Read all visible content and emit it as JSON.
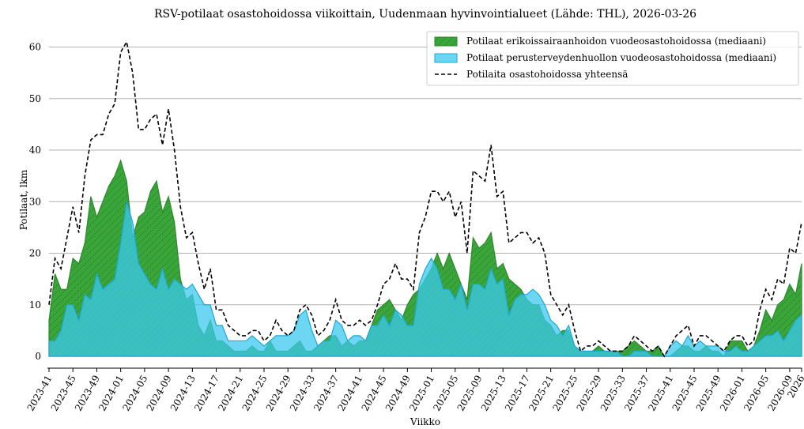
{
  "chart_data": {
    "type": "area",
    "title": "RSV-potilaat osastohoidossa viikoittain, Uudenmaan hyvinvointialueet (Lähde: THL), 2026-03-26",
    "xlabel": "Viikko",
    "ylabel": "Potilaat, lkm",
    "categories": [
      "2023-41",
      null,
      null,
      null,
      "2023-45",
      null,
      null,
      null,
      "2023-49",
      null,
      null,
      null,
      "2024-01",
      null,
      null,
      null,
      "2024-05",
      null,
      null,
      null,
      "2024-09",
      null,
      null,
      null,
      "2024-13",
      null,
      null,
      null,
      "2024-17",
      null,
      null,
      null,
      "2024-21",
      null,
      null,
      null,
      "2024-25",
      null,
      null,
      null,
      "2024-29",
      null,
      null,
      null,
      "2024-33",
      null,
      null,
      null,
      "2024-37",
      null,
      null,
      null,
      "2024-41",
      null,
      null,
      null,
      "2024-45",
      null,
      null,
      null,
      "2024-49",
      null,
      null,
      null,
      "2025-01",
      null,
      null,
      null,
      "2025-05",
      null,
      null,
      null,
      "2025-09",
      null,
      null,
      null,
      "2025-13",
      null,
      null,
      null,
      "2025-17",
      null,
      null,
      null,
      "2025-21",
      null,
      null,
      null,
      "2025-25",
      null,
      null,
      null,
      "2025-29",
      null,
      null,
      null,
      "2025-33",
      null,
      null,
      null,
      "2025-37",
      null,
      null,
      null,
      "2025-41",
      null,
      null,
      null,
      "2025-45",
      null,
      null,
      null,
      "2025-49",
      null,
      null,
      null,
      "2026-01",
      null,
      null,
      null,
      "2026-05",
      null,
      null,
      null,
      "2026-09",
      null,
      "2026"
    ],
    "series": [
      {
        "name": "Potilaat erikoissairaanhoidon vuodeosastohoidossa (mediaani)",
        "type": "area",
        "color": "#3aa63a",
        "hatch": true,
        "values": [
          7,
          16,
          13,
          13,
          19,
          18,
          22,
          31,
          27,
          30,
          33,
          35,
          38,
          34,
          23,
          27,
          28,
          32,
          34,
          28,
          31,
          26,
          15,
          11,
          12,
          6,
          4,
          7,
          3,
          3,
          2,
          1,
          1,
          1,
          2,
          1,
          1,
          3,
          1,
          1,
          1,
          2,
          3,
          1,
          1,
          2,
          3,
          4,
          4,
          2,
          3,
          2,
          3,
          3,
          6,
          9,
          10,
          11,
          9,
          7,
          10,
          12,
          13,
          15,
          17,
          20,
          17,
          20,
          17,
          14,
          11,
          23,
          21,
          22,
          24,
          17,
          18,
          15,
          14,
          13,
          11,
          10,
          10,
          7,
          6,
          4,
          5,
          5,
          2,
          1,
          1,
          1,
          2,
          1,
          1,
          1,
          1,
          2,
          3,
          2,
          1,
          1,
          2,
          0,
          0,
          1,
          2,
          2,
          1,
          1,
          2,
          1,
          1,
          0,
          3,
          3,
          3,
          1,
          2,
          5,
          9,
          7,
          10,
          11,
          14,
          12,
          18
        ]
      },
      {
        "name": "Potilaat perusterveydenhuollon vuodeosastohoidossa (mediaani)",
        "type": "area",
        "color": "#3cc8ee",
        "values": [
          3,
          3,
          5,
          10,
          10,
          7,
          12,
          11,
          16,
          13,
          14,
          15,
          22,
          30,
          26,
          18,
          16,
          14,
          13,
          17,
          13,
          15,
          14,
          13,
          14,
          12,
          10,
          10,
          6,
          6,
          3,
          3,
          3,
          3,
          4,
          3,
          2,
          3,
          4,
          4,
          4,
          5,
          8,
          9,
          5,
          2,
          3,
          3,
          7,
          6,
          3,
          4,
          4,
          3,
          6,
          6,
          8,
          6,
          9,
          8,
          6,
          6,
          14,
          17,
          19,
          17,
          13,
          13,
          11,
          14,
          9,
          14,
          14,
          13,
          17,
          14,
          15,
          8,
          11,
          12,
          12,
          13,
          12,
          10,
          7,
          6,
          4,
          6,
          2,
          1,
          1,
          1,
          1,
          1,
          1,
          1,
          0,
          0,
          1,
          1,
          1,
          0,
          0,
          0,
          2,
          3,
          2,
          4,
          2,
          3,
          2,
          2,
          2,
          1,
          1,
          2,
          1,
          1,
          2,
          3,
          4,
          4,
          5,
          3,
          5,
          7,
          8
        ]
      },
      {
        "name": "Potilaita osastohoidossa yhteensä",
        "type": "line",
        "color": "#000000",
        "dashed": true,
        "values": [
          10,
          19,
          17,
          23,
          29,
          24,
          35,
          42,
          43,
          43,
          47,
          49,
          59,
          61,
          55,
          44,
          44,
          46,
          47,
          41,
          48,
          40,
          29,
          23,
          24,
          18,
          13,
          17,
          9,
          9,
          6,
          5,
          4,
          4,
          5,
          5,
          3,
          4,
          7,
          5,
          4,
          5,
          9,
          10,
          8,
          4,
          5,
          7,
          11,
          7,
          6,
          6,
          7,
          6,
          7,
          10,
          14,
          15,
          18,
          15,
          15,
          13,
          24,
          27,
          32,
          32,
          30,
          32,
          27,
          30,
          20,
          36,
          35,
          34,
          41,
          31,
          32,
          22,
          23,
          24,
          24,
          22,
          23,
          20,
          12,
          10,
          8,
          10,
          5,
          1,
          2,
          2,
          3,
          2,
          1,
          1,
          1,
          2,
          4,
          3,
          2,
          1,
          2,
          0,
          2,
          4,
          5,
          6,
          2,
          4,
          4,
          3,
          2,
          1,
          3,
          4,
          4,
          2,
          3,
          9,
          13,
          11,
          15,
          14,
          21,
          20,
          26
        ]
      }
    ],
    "ylim": [
      -2.3,
      63
    ],
    "yticks": [
      0,
      10,
      20,
      30,
      40,
      50,
      60
    ],
    "grid": true,
    "legend": "upper right"
  }
}
